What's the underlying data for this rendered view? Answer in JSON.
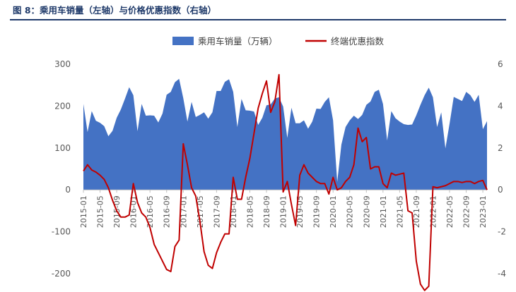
{
  "figure": {
    "title": "图 8：乘用车销量（左轴）与价格优惠指数（右轴）"
  },
  "chart_data": {
    "type": "area+line",
    "legend_position": "top-center",
    "grid": false,
    "colors": {
      "area": "#4472C4",
      "line": "#C00000",
      "title": "#1f3a6a"
    },
    "y_left": {
      "min": -200,
      "max": 300,
      "ticks": [
        300,
        200,
        100,
        0,
        -100,
        -200
      ],
      "tick_labels": [
        "300",
        "200",
        "100",
        "0",
        "-100",
        "-200"
      ]
    },
    "y_right": {
      "min": -4,
      "max": 6,
      "ticks": [
        6,
        4,
        2,
        0,
        -2,
        -4
      ],
      "tick_labels": [
        "6",
        "4",
        "2",
        "0",
        "-2",
        "-4"
      ]
    },
    "x_tick_labels": [
      "2015-01",
      "2015-05",
      "2015-09",
      "2016-01",
      "2016-05",
      "2016-09",
      "2017-01",
      "2017-05",
      "2017-09",
      "2018-01",
      "2018-05",
      "2018-09",
      "2019-01",
      "2019-05",
      "2019-09",
      "2020-01",
      "2020-05",
      "2020-09",
      "2021-01",
      "2021-05",
      "2021-09",
      "2022-01",
      "2022-05",
      "2022-09",
      "2023-01"
    ],
    "series": [
      {
        "name": "乘用车销量（万辆）",
        "axis": "left",
        "kind": "area",
        "values": [
          205,
          138,
          188,
          165,
          160,
          152,
          128,
          141,
          172,
          192,
          218,
          245,
          226,
          140,
          205,
          177,
          178,
          177,
          161,
          182,
          227,
          234,
          257,
          265,
          219,
          163,
          210,
          174,
          179,
          185,
          170,
          185,
          236,
          236,
          258,
          264,
          234,
          150,
          217,
          190,
          189,
          187,
          155,
          172,
          202,
          204,
          218,
          221,
          199,
          124,
          196,
          159,
          159,
          166,
          146,
          163,
          194,
          193,
          210,
          221,
          166,
          19,
          108,
          150,
          166,
          177,
          169,
          179,
          203,
          211,
          234,
          239,
          205,
          118,
          188,
          171,
          163,
          157,
          155,
          156,
          178,
          203,
          226,
          244,
          221,
          150,
          185,
          99,
          158,
          222,
          217,
          212,
          234,
          226,
          210,
          227,
          145,
          164
        ]
      },
      {
        "name": "终端优惠指数",
        "axis": "right",
        "kind": "line",
        "values": [
          0.9,
          1.2,
          0.95,
          0.85,
          0.7,
          0.5,
          0.1,
          -0.5,
          -1.0,
          -1.3,
          -1.3,
          -1.2,
          0.3,
          -0.6,
          -1.1,
          -1.3,
          -1.8,
          -2.6,
          -3.0,
          -3.4,
          -3.8,
          -3.9,
          -2.7,
          -2.4,
          2.2,
          1.2,
          0.1,
          -0.3,
          -1.5,
          -2.95,
          -3.6,
          -3.75,
          -3.0,
          -2.5,
          -2.1,
          -2.1,
          0.6,
          -0.45,
          -0.45,
          0.6,
          1.5,
          2.7,
          3.9,
          4.6,
          5.2,
          3.7,
          4.2,
          5.5,
          -0.1,
          0.4,
          -0.7,
          -1.7,
          0.7,
          1.2,
          0.8,
          0.6,
          0.4,
          0.3,
          0.3,
          -0.2,
          0.6,
          0.0,
          0.1,
          0.4,
          0.6,
          1.2,
          2.95,
          2.3,
          2.5,
          1.0,
          1.1,
          1.1,
          0.3,
          0.1,
          0.8,
          0.7,
          0.75,
          0.8,
          -1.0,
          -1.1,
          -3.4,
          -4.5,
          -4.8,
          -4.6,
          0.15,
          0.1,
          0.15,
          0.2,
          0.3,
          0.4,
          0.4,
          0.35,
          0.4,
          0.4,
          0.3,
          0.4,
          0.45,
          0.0
        ]
      }
    ]
  }
}
